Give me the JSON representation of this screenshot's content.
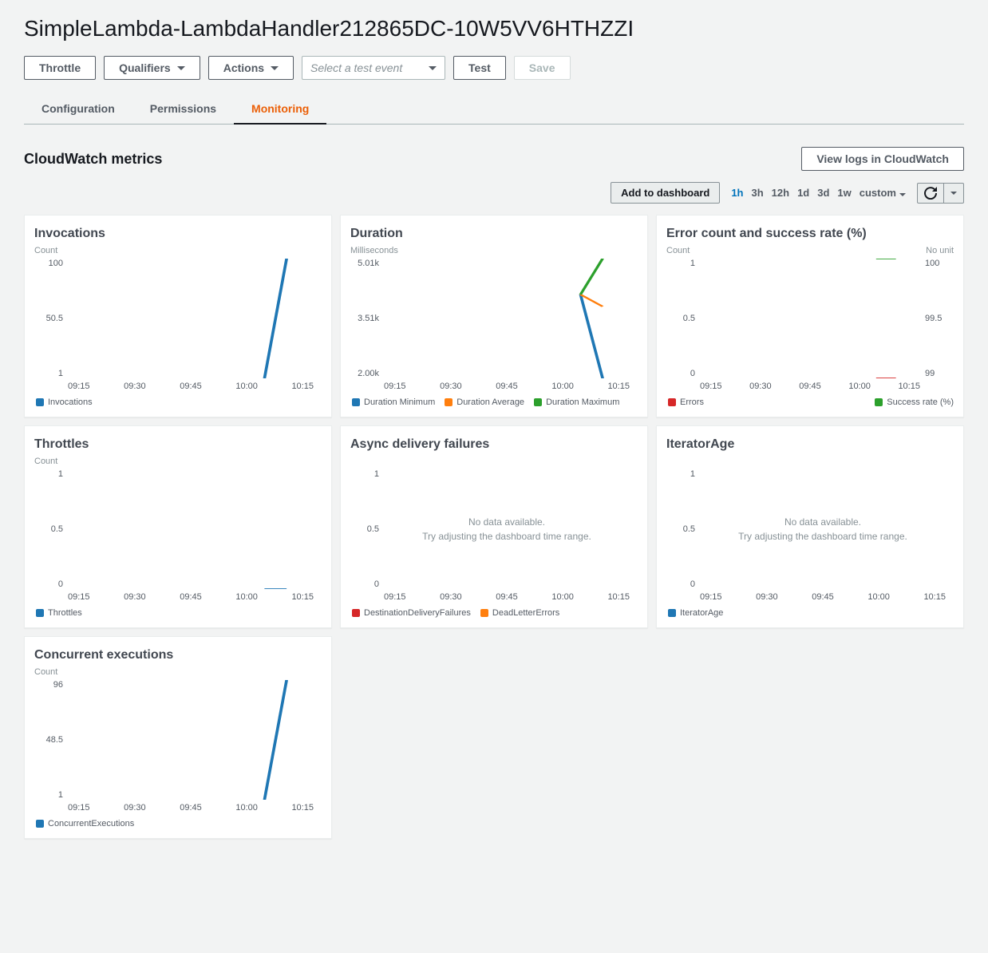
{
  "colors": {
    "blue": "#1f77b4",
    "orange": "#ff7f0e",
    "green": "#2ca02c",
    "red": "#d62728",
    "active_link": "#0073bb",
    "tab_active": "#eb5f07"
  },
  "header": {
    "title": "SimpleLambda-LambdaHandler212865DC-10W5VV6HTHZZI",
    "buttons": {
      "throttle": "Throttle",
      "qualifiers": "Qualifiers",
      "actions": "Actions",
      "test": "Test",
      "save": "Save"
    },
    "test_select_placeholder": "Select a test event"
  },
  "tabs": {
    "configuration": "Configuration",
    "permissions": "Permissions",
    "monitoring": "Monitoring",
    "active": "monitoring"
  },
  "section": {
    "title": "CloudWatch metrics",
    "view_logs": "View logs in CloudWatch",
    "add_dashboard": "Add to dashboard",
    "time_ranges": [
      "1h",
      "3h",
      "12h",
      "1d",
      "3d",
      "1w",
      "custom"
    ],
    "time_active": "1h"
  },
  "x_ticks": [
    "09:15",
    "09:30",
    "09:45",
    "10:00",
    "10:15"
  ],
  "nodata": {
    "line1": "No data available.",
    "line2": "Try adjusting the dashboard time range."
  },
  "panels": {
    "invocations": {
      "title": "Invocations",
      "ylabel": "Count",
      "yticks": [
        "100",
        "50.5",
        "1"
      ],
      "legend": [
        {
          "label": "Invocations",
          "color": "#1f77b4"
        }
      ],
      "lines": [
        {
          "color": "#1f77b4",
          "points": [
            [
              80,
              100
            ],
            [
              89,
              0
            ]
          ]
        }
      ]
    },
    "duration": {
      "title": "Duration",
      "ylabel": "Milliseconds",
      "yticks": [
        "5.01k",
        "3.51k",
        "2.00k"
      ],
      "legend": [
        {
          "label": "Duration Minimum",
          "color": "#1f77b4"
        },
        {
          "label": "Duration Average",
          "color": "#ff7f0e"
        },
        {
          "label": "Duration Maximum",
          "color": "#2ca02c"
        }
      ],
      "lines": [
        {
          "color": "#1f77b4",
          "points": [
            [
              80,
              30
            ],
            [
              89,
              100
            ]
          ]
        },
        {
          "color": "#ff7f0e",
          "points": [
            [
              80,
              30
            ],
            [
              89,
              40
            ]
          ]
        },
        {
          "color": "#2ca02c",
          "points": [
            [
              80,
              30
            ],
            [
              89,
              0
            ]
          ]
        }
      ]
    },
    "errors": {
      "title": "Error count and success rate (%)",
      "ylabel_left": "Count",
      "ylabel_right": "No unit",
      "yticks_left": [
        "1",
        "0.5",
        "0"
      ],
      "yticks_right": [
        "100",
        "99.5",
        "99"
      ],
      "legend": [
        {
          "label": "Errors",
          "color": "#d62728"
        },
        {
          "label": "Success rate (%)",
          "color": "#2ca02c"
        }
      ],
      "lines": [
        {
          "color": "#d62728",
          "points": [
            [
              80,
              100
            ],
            [
              89,
              100
            ]
          ]
        },
        {
          "color": "#2ca02c",
          "points": [
            [
              80,
              0
            ],
            [
              89,
              0
            ]
          ]
        }
      ]
    },
    "throttles": {
      "title": "Throttles",
      "ylabel": "Count",
      "yticks": [
        "1",
        "0.5",
        "0"
      ],
      "legend": [
        {
          "label": "Throttles",
          "color": "#1f77b4"
        }
      ],
      "lines": [
        {
          "color": "#1f77b4",
          "points": [
            [
              80,
              100
            ],
            [
              89,
              100
            ]
          ]
        }
      ]
    },
    "async": {
      "title": "Async delivery failures",
      "yticks": [
        "1",
        "0.5",
        "0"
      ],
      "legend": [
        {
          "label": "DestinationDeliveryFailures",
          "color": "#d62728"
        },
        {
          "label": "DeadLetterErrors",
          "color": "#ff7f0e"
        }
      ],
      "nodata": true
    },
    "iterator": {
      "title": "IteratorAge",
      "yticks": [
        "1",
        "0.5",
        "0"
      ],
      "legend": [
        {
          "label": "IteratorAge",
          "color": "#1f77b4"
        }
      ],
      "nodata": true
    },
    "concurrent": {
      "title": "Concurrent executions",
      "ylabel": "Count",
      "yticks": [
        "96",
        "48.5",
        "1"
      ],
      "legend": [
        {
          "label": "ConcurrentExecutions",
          "color": "#1f77b4"
        }
      ],
      "lines": [
        {
          "color": "#1f77b4",
          "points": [
            [
              80,
              100
            ],
            [
              89,
              0
            ]
          ]
        }
      ]
    }
  }
}
